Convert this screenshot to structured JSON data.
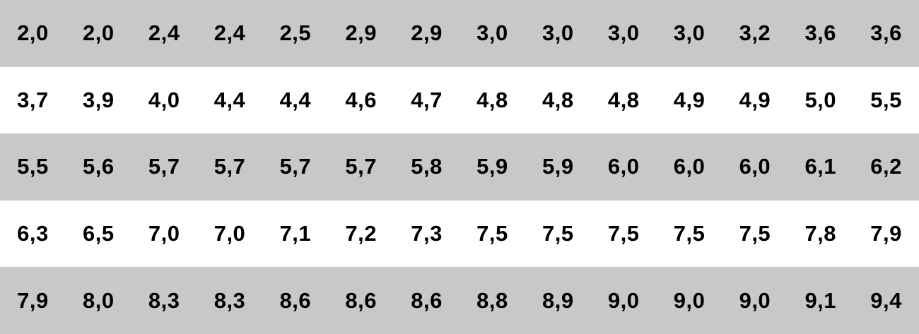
{
  "colors": {
    "shaded_row": "#c8c8c8",
    "plain_row": "#ffffff",
    "text": "#000000"
  },
  "table": {
    "rows": [
      [
        "2,0",
        "2,0",
        "2,4",
        "2,4",
        "2,5",
        "2,9",
        "2,9",
        "3,0",
        "3,0",
        "3,0",
        "3,0",
        "3,2",
        "3,6",
        "3,6"
      ],
      [
        "3,7",
        "3,9",
        "4,0",
        "4,4",
        "4,4",
        "4,6",
        "4,7",
        "4,8",
        "4,8",
        "4,8",
        "4,9",
        "4,9",
        "5,0",
        "5,5"
      ],
      [
        "5,5",
        "5,6",
        "5,7",
        "5,7",
        "5,7",
        "5,7",
        "5,8",
        "5,9",
        "5,9",
        "6,0",
        "6,0",
        "6,0",
        "6,1",
        "6,2"
      ],
      [
        "6,3",
        "6,5",
        "7,0",
        "7,0",
        "7,1",
        "7,2",
        "7,3",
        "7,5",
        "7,5",
        "7,5",
        "7,5",
        "7,5",
        "7,8",
        "7,9"
      ],
      [
        "7,9",
        "8,0",
        "8,3",
        "8,3",
        "8,6",
        "8,6",
        "8,6",
        "8,8",
        "8,9",
        "9,0",
        "9,0",
        "9,0",
        "9,1",
        "9,4"
      ]
    ]
  }
}
